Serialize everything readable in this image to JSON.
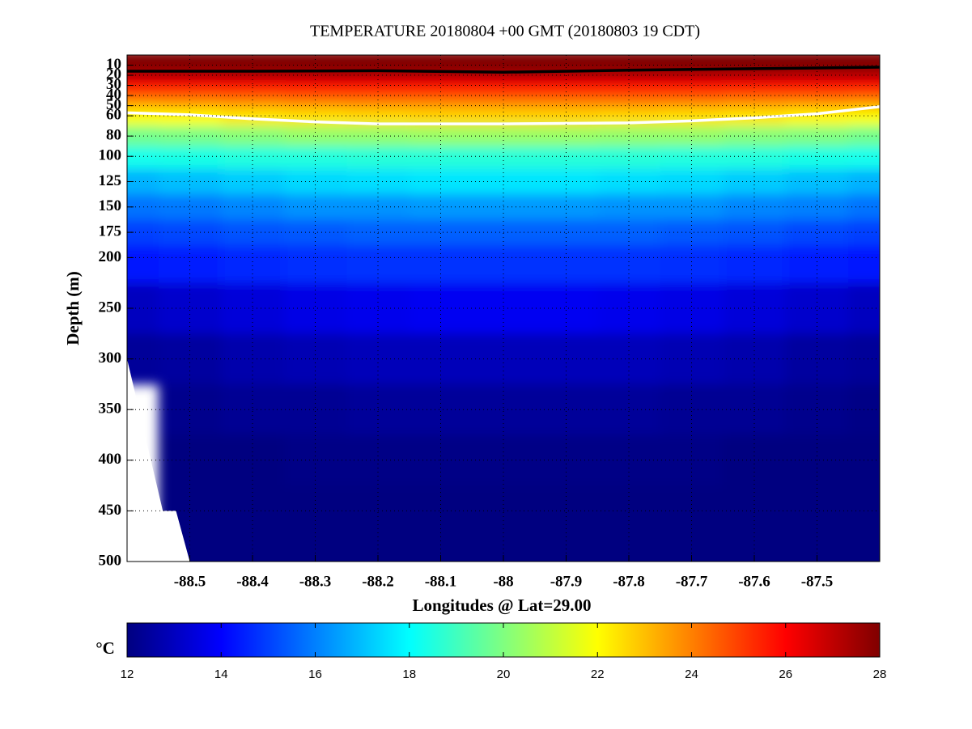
{
  "chart_data": {
    "type": "heatmap",
    "title": "TEMPERATURE 20180804 +00 GMT (20180803 19 CDT)",
    "xlabel": "Longitudes @ Lat=29.00",
    "ylabel": "Depth (m)",
    "colorbar_label": "°C",
    "colormap": "jet",
    "x": [
      -88.6,
      -88.5,
      -88.4,
      -88.3,
      -88.2,
      -88.1,
      -88.0,
      -87.9,
      -87.8,
      -87.7,
      -87.6,
      -87.5,
      -87.4
    ],
    "y": [
      0,
      10,
      20,
      30,
      40,
      50,
      60,
      80,
      100,
      125,
      150,
      175,
      200,
      250,
      300,
      350,
      400,
      450,
      500
    ],
    "z": [
      [
        28,
        28,
        28,
        28,
        28,
        28,
        28,
        28,
        28,
        28,
        28,
        28,
        28
      ],
      [
        28,
        28,
        28,
        28,
        28,
        28,
        28,
        28,
        28,
        28,
        28,
        28,
        28
      ],
      [
        27.2,
        27.2,
        27.3,
        27.3,
        27.3,
        27.3,
        27.3,
        27.3,
        27.3,
        27.3,
        27.3,
        27.2,
        27.2
      ],
      [
        26,
        26,
        26,
        26,
        26,
        26,
        26,
        26,
        26,
        26,
        26,
        26,
        26
      ],
      [
        24.6,
        24.6,
        24.7,
        24.8,
        24.8,
        24.8,
        24.8,
        24.8,
        24.8,
        24.8,
        24.7,
        24.7,
        24.6
      ],
      [
        23.2,
        23.3,
        23.4,
        23.5,
        23.6,
        23.6,
        23.6,
        23.6,
        23.6,
        23.5,
        23.4,
        23.3,
        23.2
      ],
      [
        21.9,
        22.0,
        22.3,
        22.4,
        22.5,
        22.6,
        22.6,
        22.6,
        22.5,
        22.4,
        22.3,
        22.1,
        21.9
      ],
      [
        19.8,
        19.9,
        20.1,
        20.3,
        20.3,
        20.4,
        20.4,
        20.4,
        20.3,
        20.3,
        20.1,
        20.0,
        19.8
      ],
      [
        18.3,
        18.4,
        18.5,
        18.5,
        18.6,
        18.6,
        18.6,
        18.6,
        18.6,
        18.5,
        18.5,
        18.4,
        18.3
      ],
      [
        16.8,
        17.0,
        17.2,
        17.4,
        17.5,
        17.6,
        17.6,
        17.6,
        17.5,
        17.4,
        17.2,
        17.0,
        16.8
      ],
      [
        15.8,
        15.9,
        16.1,
        16.3,
        16.3,
        16.4,
        16.4,
        16.4,
        16.3,
        16.3,
        16.1,
        16.0,
        15.8
      ],
      [
        15.0,
        15.1,
        15.3,
        15.4,
        15.5,
        15.5,
        15.5,
        15.5,
        15.5,
        15.4,
        15.3,
        15.1,
        15.0
      ],
      [
        14.3,
        14.4,
        14.6,
        14.7,
        14.8,
        14.8,
        14.8,
        14.8,
        14.8,
        14.7,
        14.6,
        14.4,
        14.3
      ],
      [
        13.0,
        13.2,
        13.4,
        13.6,
        13.7,
        13.8,
        13.8,
        13.8,
        13.7,
        13.6,
        13.4,
        13.2,
        13.0
      ],
      [
        12.4,
        12.5,
        12.7,
        12.8,
        12.9,
        12.9,
        12.9,
        12.9,
        12.9,
        12.8,
        12.7,
        12.5,
        12.4
      ],
      [
        null,
        12.2,
        12.3,
        12.3,
        12.4,
        12.4,
        12.4,
        12.4,
        12.4,
        12.3,
        12.3,
        12.2,
        12.1
      ],
      [
        null,
        12,
        12,
        12.1,
        12.1,
        12.1,
        12.1,
        12.1,
        12.1,
        12.1,
        12,
        12,
        12
      ],
      [
        null,
        12,
        12,
        12,
        12,
        12,
        12,
        12,
        12,
        12,
        12,
        12,
        12
      ],
      [
        null,
        12,
        12,
        12,
        12,
        12,
        12,
        12,
        12,
        12,
        12,
        12,
        12
      ]
    ],
    "contours": [
      {
        "color": "#000000",
        "x": [
          -88.6,
          -88.4,
          -88.2,
          -88.0,
          -87.8,
          -87.6,
          -87.4
        ],
        "depth": [
          16,
          16,
          15.5,
          17,
          15,
          13.5,
          12
        ]
      },
      {
        "color": "#ffffff",
        "x": [
          -88.6,
          -88.5,
          -88.4,
          -88.3,
          -88.2,
          -88.0,
          -87.8,
          -87.7,
          -87.6,
          -87.5,
          -87.4
        ],
        "depth": [
          57,
          59,
          63,
          66,
          68,
          68,
          67,
          65,
          62,
          58,
          51
        ]
      }
    ],
    "seafloor_x": [
      -88.6,
      -88.543,
      -88.522,
      -88.5
    ],
    "seafloor_depth": [
      300,
      450,
      450,
      500
    ],
    "xlim": [
      -88.6,
      -87.4
    ],
    "ylim": [
      0,
      500
    ],
    "y_inverted": true,
    "xticks": [
      -88.5,
      -88.4,
      -88.3,
      -88.2,
      -88.1,
      -88,
      -87.9,
      -87.8,
      -87.7,
      -87.6,
      -87.5
    ],
    "yticks": [
      10,
      20,
      30,
      40,
      50,
      60,
      80,
      100,
      125,
      150,
      175,
      200,
      250,
      300,
      350,
      400,
      450,
      500
    ],
    "clim": [
      12,
      28
    ],
    "cticks": [
      12,
      14,
      16,
      18,
      20,
      22,
      24,
      26,
      28
    ],
    "grid": true
  }
}
